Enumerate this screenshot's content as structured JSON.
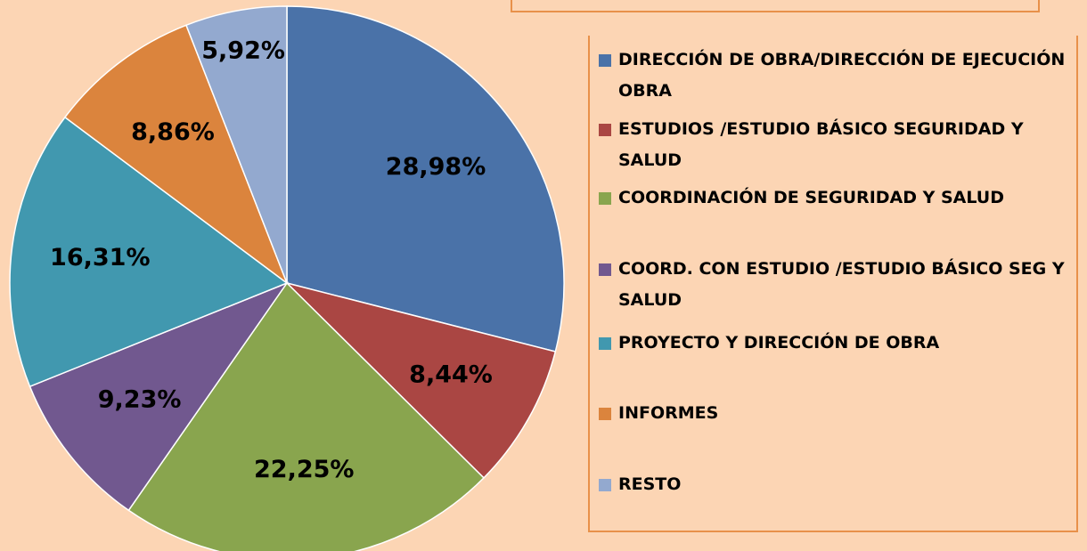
{
  "chart_data": {
    "type": "pie",
    "categories": [
      "DIRECCIÓN DE OBRA/DIRECCIÓN DE EJECUCIÓN OBRA",
      "ESTUDIOS /ESTUDIO BÁSICO SEGURIDAD Y SALUD",
      "COORDINACIÓN DE SEGURIDAD Y SALUD",
      "COORD. CON ESTUDIO /ESTUDIO BÁSICO SEG Y SALUD",
      "PROYECTO Y DIRECCIÓN DE OBRA",
      "INFORMES",
      "RESTO"
    ],
    "values": [
      28.98,
      8.44,
      22.25,
      9.23,
      16.31,
      8.86,
      5.92
    ],
    "value_labels": [
      "28,98%",
      "8,44%",
      "22,25%",
      "9,23%",
      "16,31%",
      "8,86%",
      "5,92%"
    ],
    "colors": [
      "#4a72a8",
      "#aa4643",
      "#89a54e",
      "#71588f",
      "#4198af",
      "#db843d",
      "#93a9cf"
    ],
    "legend": "right"
  }
}
